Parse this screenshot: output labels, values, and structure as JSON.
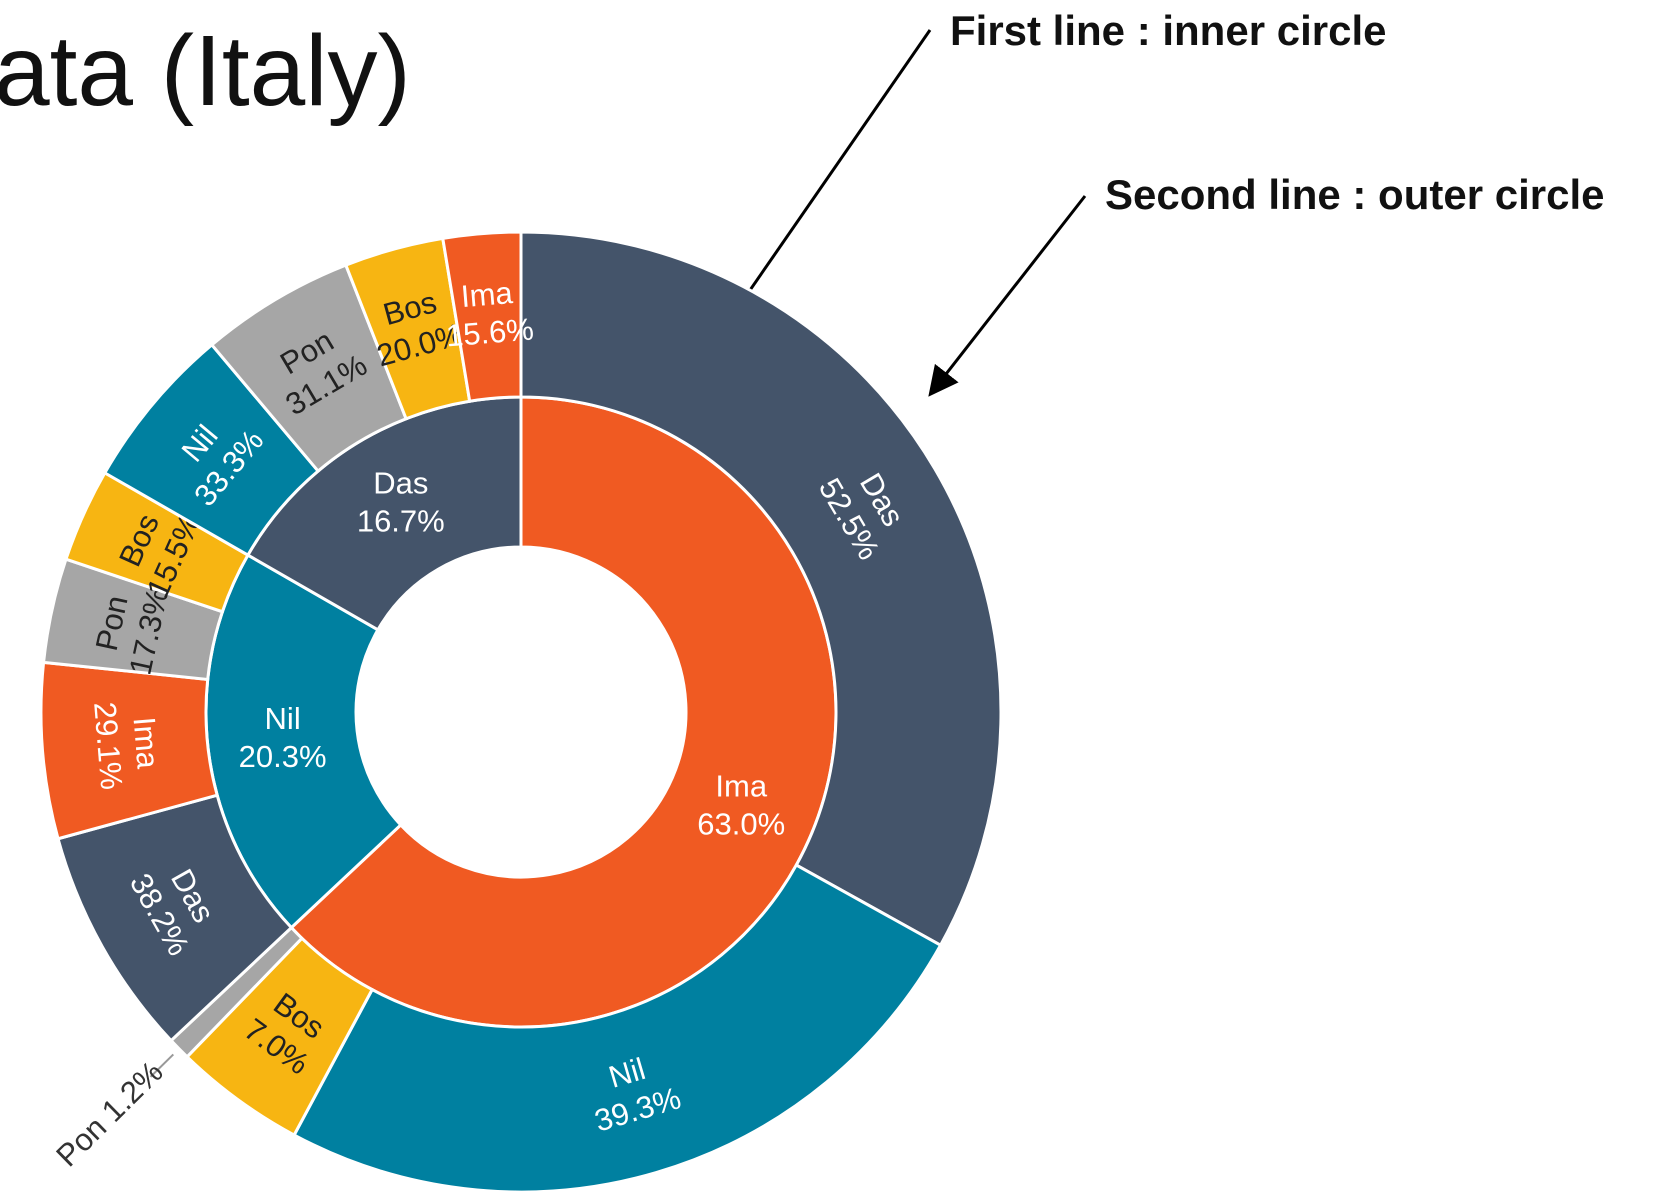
{
  "chart_data": {
    "type": "sunburst",
    "title": "ata (Italy)",
    "annotations": [
      "First line : inner circle",
      "Second line : outer circle"
    ],
    "series": [
      {
        "name": "Ima",
        "value": 63.0,
        "value_label": "63.0%",
        "color": "#f05a22",
        "children": [
          {
            "name": "Das",
            "value": 52.5,
            "value_label": "52.5%",
            "color": "#44546a"
          },
          {
            "name": "Nil",
            "value": 39.3,
            "value_label": "39.3%",
            "color": "#0080a0"
          },
          {
            "name": "Bos",
            "value": 7.0,
            "value_label": "7.0%",
            "color": "#f7b512"
          },
          {
            "name": "Pon",
            "value": 1.2,
            "value_label": "1.2%",
            "color": "#a6a6a6"
          }
        ]
      },
      {
        "name": "Nil",
        "value": 20.3,
        "value_label": "20.3%",
        "color": "#0080a0",
        "children": [
          {
            "name": "Das",
            "value": 38.2,
            "value_label": "38.2%",
            "color": "#44546a"
          },
          {
            "name": "Ima",
            "value": 29.1,
            "value_label": "29.1%",
            "color": "#f05a22"
          },
          {
            "name": "Pon",
            "value": 17.3,
            "value_label": "17.3%",
            "color": "#a6a6a6"
          },
          {
            "name": "Bos",
            "value": 15.5,
            "value_label": "15.5%",
            "color": "#f7b512"
          }
        ]
      },
      {
        "name": "Das",
        "value": 16.7,
        "value_label": "16.7%",
        "color": "#44546a",
        "children": [
          {
            "name": "Nil",
            "value": 33.3,
            "value_label": "33.3%",
            "color": "#0080a0"
          },
          {
            "name": "Pon",
            "value": 31.1,
            "value_label": "31.1%",
            "color": "#a6a6a6"
          },
          {
            "name": "Bos",
            "value": 20.0,
            "value_label": "20.0%",
            "color": "#f7b512"
          },
          {
            "name": "Ima",
            "value": 15.6,
            "value_label": "15.6%",
            "color": "#f05a22"
          }
        ]
      }
    ]
  }
}
